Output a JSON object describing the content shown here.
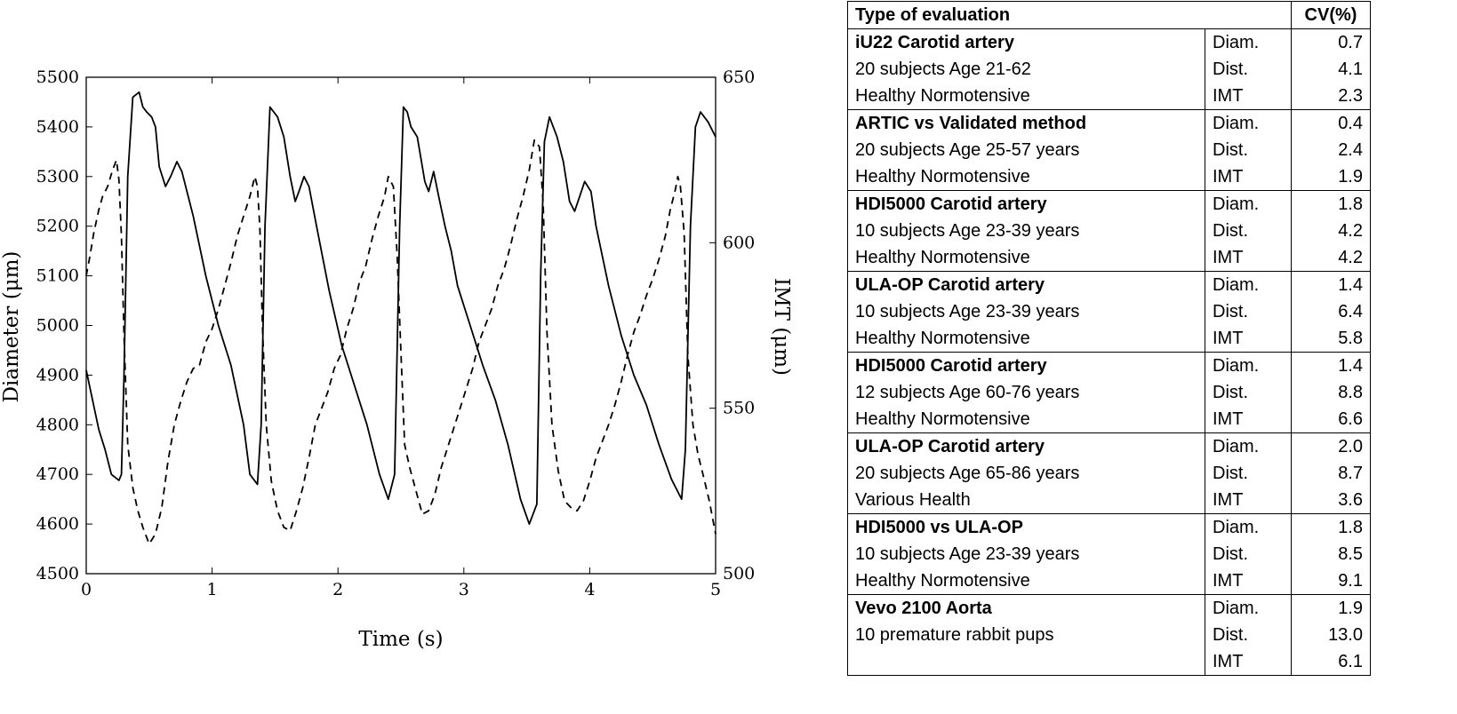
{
  "chart_data": {
    "type": "line",
    "xlabel": "Time (s)",
    "ylabel": "Diameter (μm)",
    "y2label": "IMT (μm)",
    "xlim": [
      0,
      5
    ],
    "ylim": [
      4500,
      5500
    ],
    "y2lim": [
      500,
      650
    ],
    "xticks": [
      "0",
      "1",
      "2",
      "3",
      "4",
      "5"
    ],
    "yticks": [
      "4500",
      "4600",
      "4700",
      "4800",
      "4900",
      "5000",
      "5100",
      "5200",
      "5300",
      "5400",
      "5500"
    ],
    "y2ticks": [
      "500",
      "550",
      "600",
      "650"
    ],
    "grid": false,
    "series": [
      {
        "style": "solid",
        "axis": "left",
        "x": [
          0,
          0.05,
          0.1,
          0.15,
          0.2,
          0.26,
          0.28,
          0.3,
          0.33,
          0.37,
          0.42,
          0.45,
          0.48,
          0.52,
          0.55,
          0.58,
          0.63,
          0.67,
          0.72,
          0.76,
          0.85,
          0.95,
          1.05,
          1.15,
          1.25,
          1.3,
          1.36,
          1.39,
          1.42,
          1.46,
          1.52,
          1.57,
          1.62,
          1.66,
          1.69,
          1.73,
          1.77,
          1.83,
          1.93,
          2.03,
          2.13,
          2.23,
          2.33,
          2.4,
          2.45,
          2.49,
          2.52,
          2.55,
          2.58,
          2.63,
          2.69,
          2.72,
          2.76,
          2.8,
          2.85,
          2.9,
          2.95,
          3.05,
          3.15,
          3.25,
          3.35,
          3.45,
          3.52,
          3.58,
          3.61,
          3.64,
          3.68,
          3.74,
          3.79,
          3.84,
          3.88,
          3.92,
          3.96,
          4.01,
          4.05,
          4.15,
          4.25,
          4.35,
          4.45,
          4.55,
          4.65,
          4.73,
          4.76,
          4.8,
          4.84,
          4.88,
          4.94,
          5.0
        ],
        "y": [
          4910,
          4850,
          4790,
          4750,
          4700,
          4688,
          4700,
          4900,
          5300,
          5460,
          5470,
          5440,
          5430,
          5420,
          5400,
          5320,
          5280,
          5300,
          5330,
          5310,
          5220,
          5100,
          5000,
          4920,
          4800,
          4700,
          4680,
          4800,
          5200,
          5440,
          5420,
          5380,
          5300,
          5250,
          5270,
          5300,
          5280,
          5200,
          5070,
          4960,
          4880,
          4800,
          4700,
          4650,
          4700,
          5200,
          5440,
          5430,
          5400,
          5380,
          5290,
          5270,
          5310,
          5260,
          5200,
          5150,
          5080,
          5000,
          4920,
          4850,
          4760,
          4650,
          4600,
          4640,
          5100,
          5370,
          5420,
          5380,
          5330,
          5250,
          5230,
          5260,
          5290,
          5270,
          5200,
          5080,
          4980,
          4900,
          4840,
          4760,
          4690,
          4650,
          4750,
          5200,
          5400,
          5430,
          5410,
          5380
        ]
      },
      {
        "style": "dashed",
        "axis": "right",
        "x": [
          0,
          0.03,
          0.06,
          0.1,
          0.13,
          0.17,
          0.21,
          0.24,
          0.26,
          0.28,
          0.3,
          0.33,
          0.37,
          0.41,
          0.45,
          0.5,
          0.55,
          0.6,
          0.65,
          0.7,
          0.75,
          0.8,
          0.85,
          0.9,
          0.95,
          1.0,
          1.05,
          1.1,
          1.15,
          1.2,
          1.25,
          1.3,
          1.34,
          1.36,
          1.38,
          1.4,
          1.43,
          1.47,
          1.52,
          1.57,
          1.62,
          1.67,
          1.72,
          1.77,
          1.82,
          1.87,
          1.92,
          1.97,
          2.02,
          2.07,
          2.12,
          2.17,
          2.22,
          2.27,
          2.32,
          2.37,
          2.4,
          2.44,
          2.47,
          2.5,
          2.53,
          2.57,
          2.62,
          2.67,
          2.72,
          2.77,
          2.82,
          2.87,
          2.92,
          2.97,
          3.02,
          3.07,
          3.12,
          3.17,
          3.22,
          3.27,
          3.32,
          3.37,
          3.42,
          3.47,
          3.52,
          3.56,
          3.6,
          3.63,
          3.66,
          3.7,
          3.75,
          3.8,
          3.85,
          3.9,
          3.95,
          4.0,
          4.05,
          4.1,
          4.15,
          4.2,
          4.25,
          4.3,
          4.35,
          4.4,
          4.45,
          4.5,
          4.55,
          4.6,
          4.64,
          4.68,
          4.7,
          4.72,
          4.75,
          4.78,
          4.82,
          4.86,
          4.9,
          4.95,
          5.0
        ],
        "y": [
          590,
          596,
          603,
          610,
          614,
          617,
          622,
          625,
          619,
          602,
          572,
          539,
          526,
          519,
          514,
          509,
          512,
          520,
          534,
          545,
          552,
          558,
          562,
          563,
          570,
          574,
          580,
          587,
          594,
          602,
          608,
          614,
          620,
          617,
          604,
          575,
          545,
          528,
          519,
          514,
          513,
          519,
          526,
          535,
          545,
          550,
          555,
          562,
          566,
          574,
          580,
          588,
          593,
          601,
          608,
          614,
          620,
          617,
          596,
          567,
          539,
          532,
          525,
          518,
          519,
          524,
          532,
          538,
          544,
          550,
          556,
          562,
          570,
          575,
          580,
          587,
          592,
          599,
          607,
          614,
          622,
          631,
          629,
          612,
          573,
          545,
          531,
          522,
          520,
          519,
          522,
          528,
          535,
          540,
          545,
          551,
          558,
          566,
          573,
          578,
          584,
          589,
          595,
          602,
          610,
          616,
          620,
          617,
          603,
          566,
          545,
          536,
          530,
          522,
          512
        ]
      }
    ]
  },
  "table": {
    "header": {
      "col1": "Type of  evaluation",
      "col3": "CV(%)"
    },
    "groups": [
      {
        "title": "iU22 Carotid artery",
        "line2": "20 subjects Age 21-62",
        "line3": "Healthy Normotensive",
        "diam": "0.7",
        "dist": "4.1",
        "imt": "2.3"
      },
      {
        "title": "ARTIC vs Validated method",
        "line2": "20 subjects Age 25-57 years",
        "line3": "Healthy Normotensive",
        "diam": "0.4",
        "dist": "2.4",
        "imt": "1.9"
      },
      {
        "title": "HDI5000 Carotid artery",
        "line2": "10 subjects Age 23-39 years",
        "line3": "Healthy Normotensive",
        "diam": "1.8",
        "dist": "4.2",
        "imt": "4.2"
      },
      {
        "title": "ULA-OP Carotid artery",
        "line2": "10 subjects Age 23-39 years",
        "line3": "Healthy Normotensive",
        "diam": "1.4",
        "dist": "6.4",
        "imt": "5.8"
      },
      {
        "title": "HDI5000 Carotid artery",
        "line2": "12 subjects Age 60-76 years",
        "line3": "Healthy Normotensive",
        "diam": "1.4",
        "dist": "8.8",
        "imt": "6.6"
      },
      {
        "title": "ULA-OP Carotid artery",
        "line2": "20 subjects Age 65-86 years",
        "line3": "Various Health",
        "diam": "2.0",
        "dist": "8.7",
        "imt": "3.6"
      },
      {
        "title": "HDI5000 vs ULA-OP",
        "line2": "10 subjects Age 23-39 years",
        "line3": "Healthy Normotensive",
        "diam": "1.8",
        "dist": "8.5",
        "imt": "9.1"
      },
      {
        "title": "Vevo 2100 Aorta",
        "line2": "10 premature rabbit pups",
        "line3": "",
        "diam": "1.9",
        "dist": "13.0",
        "imt": "6.1"
      }
    ],
    "param_labels": {
      "diam": "Diam.",
      "dist": "Dist.",
      "imt": "IMT"
    }
  }
}
